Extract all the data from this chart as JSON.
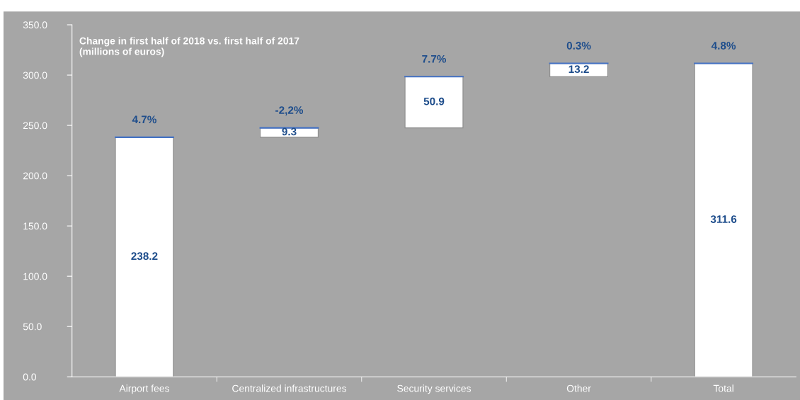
{
  "chart_data": {
    "type": "bar",
    "title": "Change in first half of 2018 vs. first half of 2017\n(millions of euros)",
    "categories": [
      "Airport fees",
      "Centralized infrastructures",
      "Security services",
      "Other",
      "Total"
    ],
    "values": [
      238.2,
      9.3,
      50.9,
      13.2,
      311.6
    ],
    "base": [
      0,
      238.2,
      247.5,
      298.4,
      0
    ],
    "color": "#ffffff",
    "value_labels": [
      "238.2",
      "9.3",
      "50.9",
      "13.2",
      "311.6"
    ],
    "annotations": [
      {
        "text": "4.7%",
        "x": "Airport fees",
        "y": 238.2
      },
      {
        "text": "-2,2%",
        "x": "Centralized infrastructures",
        "y": 247.5
      },
      {
        "text": "7.7%",
        "x": "Security services",
        "y": 298.4
      },
      {
        "text": "0.3%",
        "x": "Other",
        "y": 311.6
      },
      {
        "text": "4.8%",
        "x": "Total",
        "y": 311.6
      }
    ],
    "ylim": [
      0,
      350
    ],
    "yticks": [
      {
        "value": 0,
        "label": "0.0"
      },
      {
        "value": 50,
        "label": "50.0"
      },
      {
        "value": 100,
        "label": "100.0"
      },
      {
        "value": 150,
        "label": "150.0"
      },
      {
        "value": 200,
        "label": "200.0"
      },
      {
        "value": 250,
        "label": "250.0"
      },
      {
        "value": 300,
        "label": "300.0"
      },
      {
        "value": 350,
        "label": "350.0"
      }
    ],
    "grid": false,
    "legend": false
  }
}
